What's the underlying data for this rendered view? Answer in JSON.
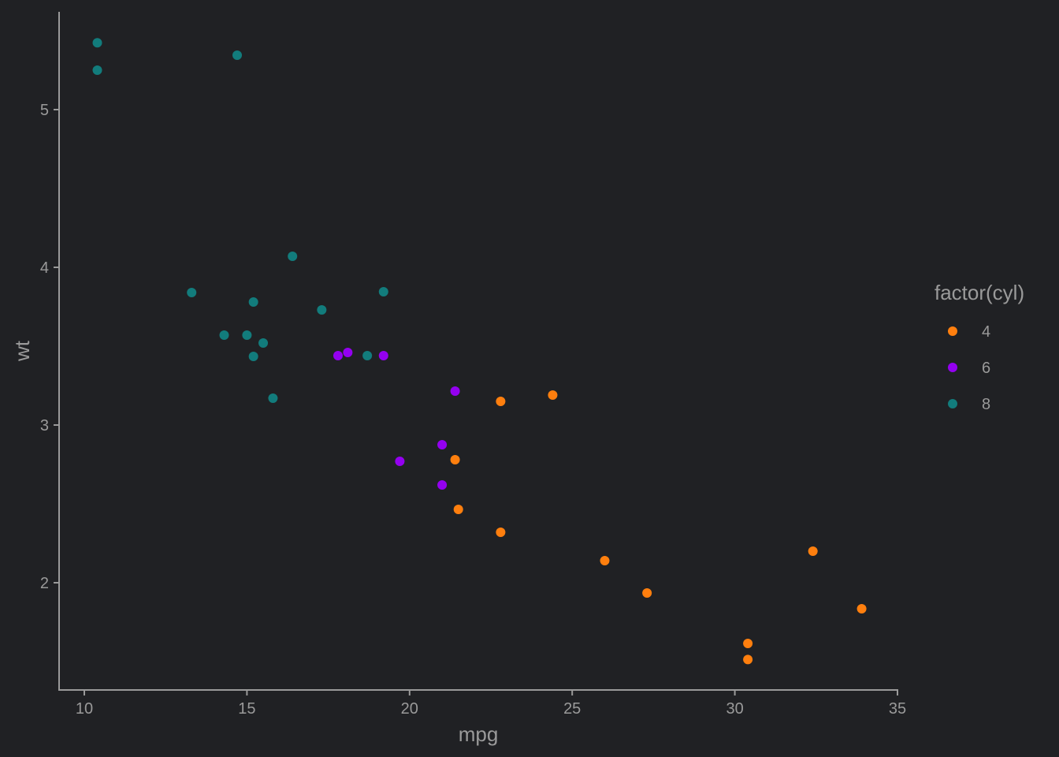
{
  "chart_data": {
    "type": "scatter",
    "title": "",
    "xlabel": "mpg",
    "ylabel": "wt",
    "xlim": [
      9.25,
      35.0
    ],
    "ylim": [
      1.32,
      5.62
    ],
    "x_ticks": [
      10,
      15,
      20,
      25,
      30,
      35
    ],
    "y_ticks": [
      2,
      3,
      4,
      5
    ],
    "grid": false,
    "legend": {
      "title": "factor(cyl)",
      "position": "right"
    },
    "series": [
      {
        "name": "4",
        "color": "#FF7F0E",
        "points": [
          [
            22.8,
            2.32
          ],
          [
            24.4,
            3.19
          ],
          [
            22.8,
            3.15
          ],
          [
            32.4,
            2.2
          ],
          [
            30.4,
            1.615
          ],
          [
            33.9,
            1.835
          ],
          [
            21.5,
            2.465
          ],
          [
            27.3,
            1.935
          ],
          [
            26.0,
            2.14
          ],
          [
            30.4,
            1.513
          ],
          [
            21.4,
            2.78
          ]
        ]
      },
      {
        "name": "6",
        "color": "#9400F0",
        "points": [
          [
            21.0,
            2.62
          ],
          [
            21.0,
            2.875
          ],
          [
            21.4,
            3.215
          ],
          [
            18.1,
            3.46
          ],
          [
            19.2,
            3.44
          ],
          [
            17.8,
            3.44
          ],
          [
            19.7,
            2.77
          ]
        ]
      },
      {
        "name": "8",
        "color": "#127C7C",
        "points": [
          [
            18.7,
            3.44
          ],
          [
            14.3,
            3.57
          ],
          [
            16.4,
            4.07
          ],
          [
            17.3,
            3.73
          ],
          [
            15.2,
            3.78
          ],
          [
            10.4,
            5.25
          ],
          [
            10.4,
            5.424
          ],
          [
            14.7,
            5.345
          ],
          [
            15.5,
            3.52
          ],
          [
            15.2,
            3.435
          ],
          [
            13.3,
            3.84
          ],
          [
            19.2,
            3.845
          ],
          [
            15.8,
            3.17
          ],
          [
            15.0,
            3.57
          ]
        ]
      }
    ]
  },
  "colors": {
    "background": "#202124",
    "axis": "#9a9a9a",
    "text": "#9a9a9a"
  }
}
